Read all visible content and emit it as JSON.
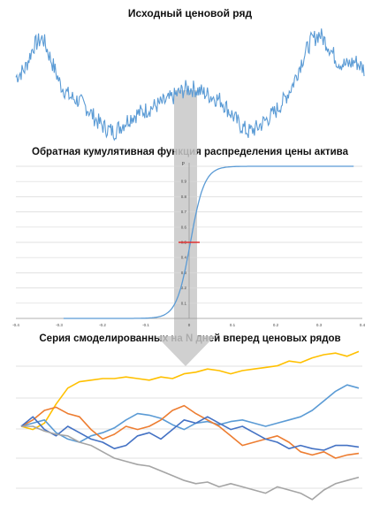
{
  "titles": {
    "source_series": "Исходный ценовой ряд",
    "inverse_cdf": "Обратная кумулятивная функция распределения цены актива",
    "simulated_series": "Серия смоделированных на N дней вперед ценовых рядов"
  },
  "colors": {
    "source_line": "#5b9bd5",
    "cdf_line": "#5b9bd5",
    "marker": "#e03030",
    "arrow": "#c8c8c8",
    "sim_yellow": "#ffc000",
    "sim_blue": "#5b9bd5",
    "sim_orange": "#ed7d31",
    "sim_navy": "#4472c4",
    "sim_gray": "#a5a5a5"
  },
  "chart_data": [
    {
      "type": "line",
      "title": "Исходный ценовой ряд",
      "grid": false,
      "series": [
        {
          "values": [
            62,
            66,
            78,
            82,
            70,
            58,
            52,
            50,
            46,
            40,
            36,
            34,
            38,
            42,
            44,
            46,
            48,
            50,
            53,
            56,
            56,
            54,
            52,
            50,
            44,
            38,
            34,
            36,
            40,
            44,
            50,
            58,
            70,
            80,
            84,
            78,
            70,
            68,
            70,
            66
          ]
        }
      ]
    },
    {
      "type": "line",
      "title": "Обратная кумулятивная функция распределения цены актива",
      "grid": true,
      "xlim": [
        -0.4,
        0.4
      ],
      "ylim": [
        0,
        1
      ],
      "x_ticks": [
        "-0.4",
        "-0.3",
        "-0.2",
        "-0.1",
        "0",
        "0.1",
        "0.2",
        "0.3",
        "0.4"
      ],
      "y_ticks": [
        "0.1",
        "0.2",
        "0.3",
        "0.4",
        "0.5",
        "0.6",
        "0.7",
        "0.8",
        "0.9"
      ],
      "y_axis_label": "P",
      "marker_y": 0.5
    },
    {
      "type": "line",
      "title": "Серия смоделированных на N дней вперед ценовых рядов",
      "grid": true,
      "series": [
        {
          "color": "#ffc000",
          "values": [
            50,
            48,
            52,
            64,
            74,
            78,
            79,
            80,
            80,
            81,
            80,
            79,
            81,
            80,
            83,
            84,
            86,
            85,
            83,
            85,
            86,
            87,
            88,
            91,
            90,
            93,
            95,
            96,
            94,
            97
          ]
        },
        {
          "color": "#5b9bd5",
          "values": [
            50,
            52,
            54,
            46,
            42,
            40,
            44,
            46,
            49,
            54,
            58,
            57,
            55,
            51,
            48,
            52,
            53,
            51,
            53,
            54,
            52,
            50,
            52,
            54,
            56,
            60,
            66,
            72,
            76,
            74
          ]
        },
        {
          "color": "#ed7d31",
          "values": [
            50,
            54,
            60,
            62,
            58,
            56,
            48,
            42,
            45,
            50,
            48,
            50,
            54,
            60,
            63,
            58,
            54,
            50,
            44,
            38,
            40,
            42,
            44,
            40,
            34,
            32,
            34,
            30,
            32,
            33
          ]
        },
        {
          "color": "#4472c4",
          "values": [
            50,
            56,
            48,
            44,
            50,
            46,
            42,
            40,
            36,
            38,
            44,
            46,
            42,
            48,
            54,
            52,
            56,
            52,
            48,
            50,
            46,
            42,
            40,
            36,
            38,
            36,
            35,
            38,
            38,
            37
          ]
        },
        {
          "color": "#a5a5a5",
          "values": [
            50,
            50,
            47,
            45,
            44,
            40,
            38,
            34,
            30,
            28,
            26,
            25,
            22,
            19,
            16,
            14,
            15,
            12,
            14,
            12,
            10,
            8,
            12,
            10,
            8,
            4,
            10,
            14,
            16,
            18
          ]
        }
      ]
    }
  ]
}
